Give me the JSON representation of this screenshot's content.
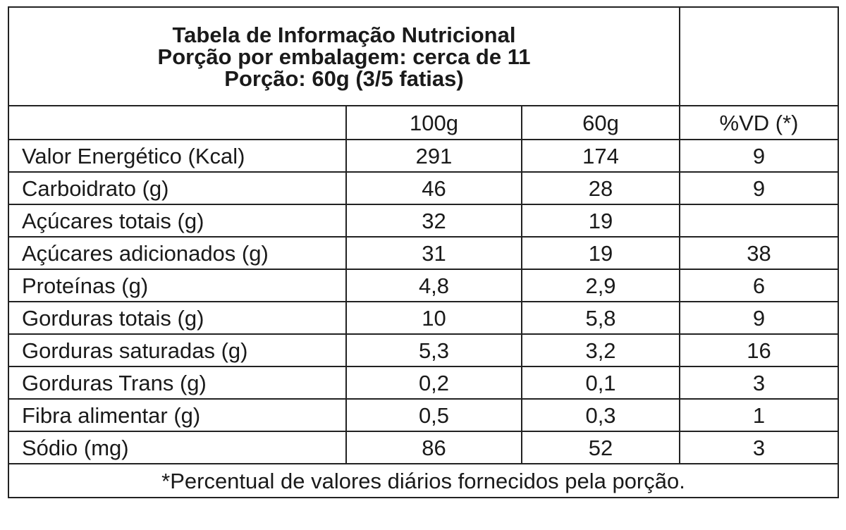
{
  "header": {
    "title": "Tabela de Informação Nutricional",
    "servings": "Porção por embalagem: cerca de 11",
    "portion": "Porção: 60g (3/5 fatias)"
  },
  "columns": {
    "per100": "100g",
    "per60": "60g",
    "dv": "%VD (*)"
  },
  "rows": [
    {
      "label": "Valor Energético (Kcal)",
      "per100": "291",
      "per60": "174",
      "dv": "9"
    },
    {
      "label": "Carboidrato (g)",
      "per100": "46",
      "per60": "28",
      "dv": "9"
    },
    {
      "label": "Açúcares totais (g)",
      "per100": "32",
      "per60": "19",
      "dv": ""
    },
    {
      "label": "Açúcares adicionados (g)",
      "per100": "31",
      "per60": "19",
      "dv": "38"
    },
    {
      "label": "Proteínas (g)",
      "per100": "4,8",
      "per60": "2,9",
      "dv": "6"
    },
    {
      "label": "Gorduras totais (g)",
      "per100": "10",
      "per60": "5,8",
      "dv": "9"
    },
    {
      "label": "Gorduras saturadas (g)",
      "per100": "5,3",
      "per60": "3,2",
      "dv": "16"
    },
    {
      "label": "Gorduras Trans (g)",
      "per100": "0,2",
      "per60": "0,1",
      "dv": "3"
    },
    {
      "label": "Fibra alimentar (g)",
      "per100": "0,5",
      "per60": "0,3",
      "dv": "1"
    },
    {
      "label": "Sódio (mg)",
      "per100": "86",
      "per60": "52",
      "dv": "3"
    }
  ],
  "footnote": "*Percentual de valores diários fornecidos pela porção."
}
